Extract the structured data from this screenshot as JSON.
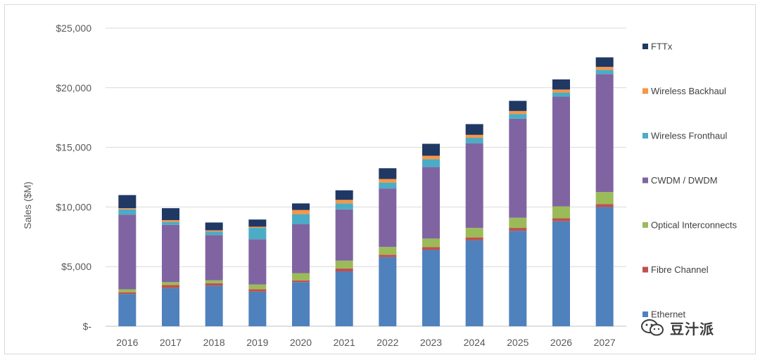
{
  "chart_data": {
    "type": "bar",
    "stacked": true,
    "title": "",
    "xlabel": "",
    "ylabel": "Sales ($M)",
    "ylim": [
      0,
      25000
    ],
    "yticks": [
      0,
      5000,
      10000,
      15000,
      20000,
      25000
    ],
    "ytick_labels": [
      "$-",
      "$5,000",
      "$10,000",
      "$15,000",
      "$20,000",
      "$25,000"
    ],
    "grid": true,
    "legend_position": "right",
    "categories": [
      "2016",
      "2017",
      "2018",
      "2019",
      "2020",
      "2021",
      "2022",
      "2023",
      "2024",
      "2025",
      "2026",
      "2027"
    ],
    "series": [
      {
        "name": "Ethernet",
        "color": "#4f81bd",
        "values": [
          2700,
          3200,
          3400,
          2900,
          3700,
          4600,
          5800,
          6400,
          7200,
          8000,
          8800,
          10000
        ]
      },
      {
        "name": "Fibre Channel",
        "color": "#c0504d",
        "values": [
          150,
          250,
          200,
          200,
          150,
          250,
          200,
          250,
          250,
          250,
          250,
          250
        ]
      },
      {
        "name": "Optical Interconnects",
        "color": "#9bbb59",
        "values": [
          250,
          250,
          250,
          400,
          600,
          650,
          650,
          700,
          800,
          850,
          1000,
          1000
        ]
      },
      {
        "name": "CWDM / DWDM",
        "color": "#8064a2",
        "values": [
          6250,
          4800,
          3800,
          3800,
          4100,
          4300,
          4900,
          6000,
          7100,
          8300,
          9200,
          9900
        ]
      },
      {
        "name": "Wireless Fronthaul",
        "color": "#4bacc6",
        "values": [
          450,
          250,
          300,
          950,
          850,
          500,
          500,
          650,
          450,
          400,
          350,
          350
        ]
      },
      {
        "name": "Wireless Backhaul",
        "color": "#f79646",
        "values": [
          100,
          150,
          100,
          100,
          350,
          300,
          300,
          300,
          250,
          250,
          250,
          250
        ]
      },
      {
        "name": "FTTx",
        "color": "#1f3864",
        "values": [
          1100,
          1000,
          650,
          600,
          550,
          800,
          900,
          1000,
          900,
          850,
          850,
          800
        ]
      }
    ]
  },
  "legend_order": [
    "FTTx",
    "Wireless Backhaul",
    "Wireless Fronthaul",
    "CWDM / DWDM",
    "Optical Interconnects",
    "Fibre Channel",
    "Ethernet"
  ],
  "watermark": {
    "text": "豆汁派"
  }
}
